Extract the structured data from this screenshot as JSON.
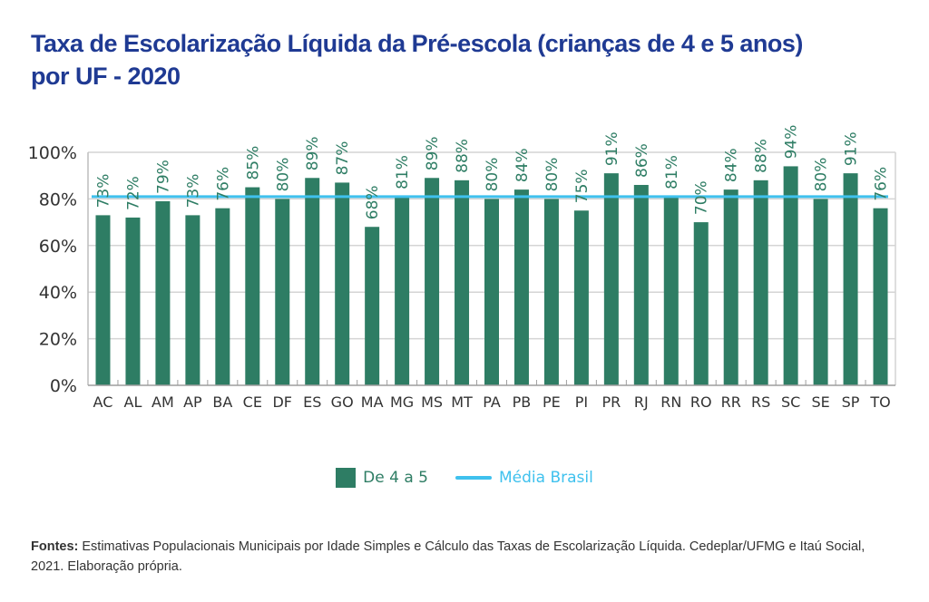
{
  "chart_data": {
    "type": "bar",
    "title": "Taxa de Escolarização Líquida da Pré-escola (crianças de 4 e 5 anos) por UF - 2020",
    "xlabel": "",
    "ylabel": "",
    "ylim": [
      0,
      100
    ],
    "yticks": [
      "0%",
      "20%",
      "40%",
      "60%",
      "80%",
      "100%"
    ],
    "ytick_values": [
      0,
      20,
      40,
      60,
      80,
      100
    ],
    "grid": true,
    "legend_position": "bottom",
    "categories": [
      "AC",
      "AL",
      "AM",
      "AP",
      "BA",
      "CE",
      "DF",
      "ES",
      "GO",
      "MA",
      "MG",
      "MS",
      "MT",
      "PA",
      "PB",
      "PE",
      "PI",
      "PR",
      "RJ",
      "RN",
      "RO",
      "RR",
      "RS",
      "SC",
      "SE",
      "SP",
      "TO"
    ],
    "series": [
      {
        "name": "De 4 a 5",
        "type": "bar",
        "color": "#2e7d64",
        "values": [
          73,
          72,
          79,
          73,
          76,
          85,
          80,
          89,
          87,
          68,
          81,
          89,
          88,
          80,
          84,
          80,
          75,
          91,
          86,
          81,
          70,
          84,
          88,
          94,
          80,
          91,
          76
        ],
        "labels": [
          "73%",
          "72%",
          "79%",
          "73%",
          "76%",
          "85%",
          "80%",
          "89%",
          "87%",
          "68%",
          "81%",
          "89%",
          "88%",
          "80%",
          "84%",
          "80%",
          "75%",
          "91%",
          "86%",
          "81%",
          "70%",
          "84%",
          "88%",
          "94%",
          "80%",
          "91%",
          "76%"
        ]
      },
      {
        "name": "Média Brasil",
        "type": "line",
        "color": "#3fc1ee",
        "value": 81
      }
    ]
  },
  "header": {
    "title_line1": "Taxa de Escolarização Líquida da Pré-escola (crianças de 4 e 5 anos)",
    "title_line2": "por UF - 2020"
  },
  "legend": {
    "bar_label": "De 4 a 5",
    "line_label": "Média Brasil"
  },
  "source": {
    "label": "Fontes:",
    "text": " Estimativas Populacionais Municipais por Idade Simples e Cálculo das Taxas de Escolarização Líquida. Cedeplar/UFMG e Itaú Social, 2021. Elaboração própria."
  }
}
